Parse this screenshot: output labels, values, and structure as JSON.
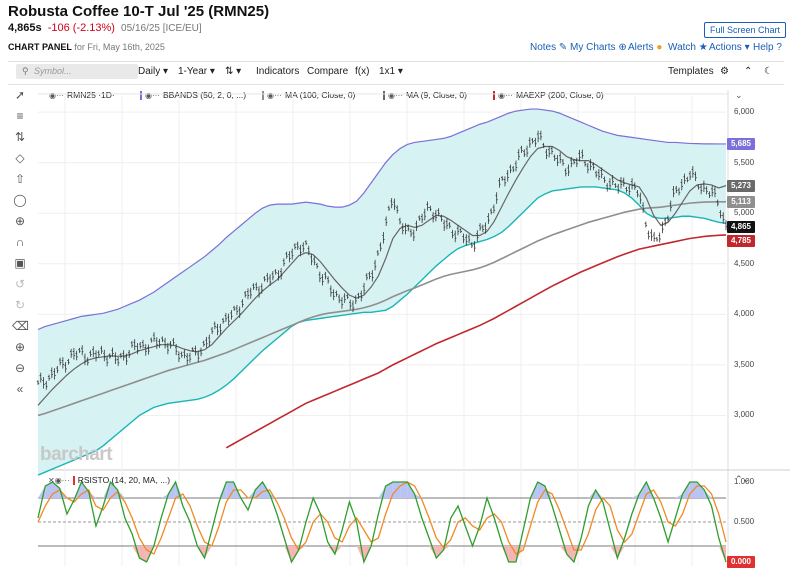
{
  "header": {
    "title": "Robusta Coffee 10-T Jul '25 (RMN25)",
    "last": "4,865s",
    "change": "-106 (-2.13%)",
    "date_exchange": "05/16/25 [ICE/EU]",
    "fullscreen_label": "Full Screen Chart",
    "panel_label": "CHART PANEL",
    "panel_sub": "for Fri, May 16th, 2025",
    "links": {
      "notes": "Notes",
      "mycharts": "My Charts",
      "alerts": "Alerts",
      "watch": "Watch",
      "actions": "Actions",
      "help": "Help"
    }
  },
  "toolbar": {
    "symbol_placeholder": "Symbol...",
    "period": "Daily",
    "range": "1-Year",
    "type_icon": "bar-type",
    "indicators": "Indicators",
    "compare": "Compare",
    "fx": "f(x)",
    "layout": "1x1",
    "templates": "Templates"
  },
  "legend": {
    "symbol": "RMN25 ·1D·",
    "bbands": "BBANDS (50, 2, 0, ...)",
    "ma100": "MA (100, Close, 0)",
    "ma9": "MA (9, Close, 0)",
    "maexp": "MAEXP (200, Close, 0)",
    "rsisto": "RSISTO (14, 20, MA, ...)"
  },
  "watermark": "barchart",
  "colors": {
    "price_bars": "#333333",
    "bb_upper": "#7a70d8",
    "bb_lower": "#1ab5b5",
    "bb_fill": "#d7f2f2",
    "ma100": "#8f8f8f",
    "ma9": "#666666",
    "maexp": "#c0282d",
    "rsi_fast": "#2e9e2e",
    "rsi_slow": "#f08a24",
    "rsi_over": "#3b5bdb",
    "rsi_under": "#e03131",
    "last_badge": "#111111"
  },
  "chart_data": [
    {
      "type": "line",
      "title": "Robusta Coffee 10-T Jul '25 (RMN25)",
      "y_axis_ticks": [
        "6,000",
        "5,500",
        "5,000",
        "4,500",
        "4,000",
        "3,500",
        "3,000"
      ],
      "ylim": [
        2500,
        6100
      ],
      "badges": [
        {
          "label": "5,685",
          "value": 5685,
          "series": "BB upper"
        },
        {
          "label": "5,273",
          "value": 5273,
          "series": "MA 9"
        },
        {
          "label": "5,113",
          "value": 5113,
          "series": "MA 100"
        },
        {
          "label": "4,865",
          "value": 4865,
          "series": "Last"
        },
        {
          "label": "4,785",
          "value": 4785,
          "series": "MAEXP 200"
        }
      ],
      "n_bars": 250,
      "series": [
        {
          "name": "Close",
          "values": [
            3300,
            3350,
            3400,
            3480,
            3550,
            3600,
            3620,
            3580,
            3600,
            3620,
            3580,
            3550,
            3600,
            3650,
            3700,
            3680,
            3720,
            3750,
            3700,
            3650,
            3600,
            3580,
            3620,
            3700,
            3800,
            3900,
            3950,
            4000,
            4100,
            4200,
            4250,
            4300,
            4350,
            4400,
            4500,
            4600,
            4700,
            4650,
            4550,
            4400,
            4300,
            4200,
            4150,
            4100,
            4150,
            4250,
            4400,
            4600,
            4850,
            5200,
            4900,
            4800,
            4850,
            4950,
            5050,
            5000,
            4900,
            4850,
            4800,
            4750,
            4700,
            4800,
            4900,
            5100,
            5300,
            5400,
            5500,
            5600,
            5700,
            5750,
            5650,
            5600,
            5500,
            5450,
            5500,
            5550,
            5500,
            5400,
            5350,
            5300,
            5250,
            5300,
            5250,
            5200,
            4900,
            4700,
            4800,
            5000,
            5200,
            5300,
            5400,
            5300,
            5250,
            5200,
            5100,
            4865
          ]
        },
        {
          "name": "MA 9",
          "values": [
            3100,
            3180,
            3260,
            3330,
            3400,
            3460,
            3510,
            3550,
            3570,
            3580,
            3590,
            3585,
            3590,
            3610,
            3640,
            3660,
            3680,
            3700,
            3700,
            3690,
            3660,
            3640,
            3630,
            3650,
            3700,
            3780,
            3860,
            3930,
            4000,
            4080,
            4160,
            4230,
            4290,
            4340,
            4420,
            4500,
            4580,
            4610,
            4590,
            4520,
            4430,
            4340,
            4260,
            4190,
            4160,
            4190,
            4270,
            4380,
            4550,
            4750,
            4850,
            4880,
            4860,
            4880,
            4930,
            4980,
            4970,
            4930,
            4880,
            4830,
            4780,
            4780,
            4820,
            4920,
            5060,
            5200,
            5330,
            5450,
            5560,
            5640,
            5660,
            5660,
            5620,
            5560,
            5530,
            5520,
            5520,
            5480,
            5430,
            5380,
            5330,
            5300,
            5280,
            5260,
            5150,
            4980,
            4880,
            4910,
            5000,
            5110,
            5220,
            5280,
            5290,
            5280,
            5250,
            5273
          ]
        },
        {
          "name": "MA 100",
          "values": [
            3000,
            3020,
            3045,
            3070,
            3095,
            3120,
            3145,
            3170,
            3195,
            3220,
            3245,
            3270,
            3295,
            3320,
            3345,
            3370,
            3395,
            3420,
            3445,
            3465,
            3485,
            3505,
            3525,
            3545,
            3570,
            3595,
            3620,
            3650,
            3680,
            3710,
            3740,
            3770,
            3800,
            3830,
            3860,
            3890,
            3920,
            3950,
            3975,
            3995,
            4010,
            4020,
            4030,
            4040,
            4050,
            4065,
            4085,
            4110,
            4140,
            4175,
            4205,
            4235,
            4260,
            4290,
            4320,
            4350,
            4375,
            4395,
            4410,
            4425,
            4440,
            4460,
            4485,
            4515,
            4550,
            4585,
            4620,
            4655,
            4690,
            4725,
            4755,
            4785,
            4810,
            4835,
            4860,
            4885,
            4910,
            4930,
            4950,
            4970,
            4990,
            5010,
            5025,
            5040,
            5050,
            5055,
            5060,
            5070,
            5080,
            5090,
            5100,
            5105,
            5110,
            5112,
            5113,
            5113
          ]
        },
        {
          "name": "MAEXP 200",
          "values": [
            null,
            null,
            null,
            null,
            null,
            null,
            null,
            null,
            null,
            null,
            null,
            null,
            null,
            null,
            null,
            null,
            null,
            null,
            null,
            null,
            null,
            null,
            null,
            null,
            null,
            null,
            2680,
            2720,
            2760,
            2800,
            2840,
            2880,
            2920,
            2960,
            3000,
            3040,
            3080,
            3120,
            3150,
            3180,
            3210,
            3240,
            3270,
            3300,
            3330,
            3360,
            3390,
            3420,
            3460,
            3500,
            3535,
            3570,
            3605,
            3640,
            3675,
            3710,
            3740,
            3770,
            3800,
            3830,
            3860,
            3890,
            3925,
            3960,
            4000,
            4040,
            4080,
            4120,
            4160,
            4200,
            4240,
            4280,
            4315,
            4350,
            4385,
            4420,
            4450,
            4480,
            4510,
            4540,
            4570,
            4595,
            4620,
            4645,
            4660,
            4675,
            4690,
            4705,
            4720,
            4735,
            4750,
            4760,
            4770,
            4777,
            4782,
            4785
          ]
        },
        {
          "name": "BB upper",
          "values": [
            3850,
            3880,
            3900,
            3920,
            3940,
            3960,
            3980,
            3990,
            4000,
            4010,
            4030,
            4050,
            4080,
            4110,
            4140,
            4180,
            4220,
            4270,
            4320,
            4370,
            4420,
            4470,
            4520,
            4570,
            4630,
            4690,
            4760,
            4820,
            4880,
            4940,
            5000,
            5050,
            5080,
            5090,
            5090,
            5090,
            5100,
            5110,
            5100,
            5090,
            5070,
            5060,
            5060,
            5080,
            5120,
            5200,
            5300,
            5400,
            5500,
            5580,
            5640,
            5680,
            5700,
            5710,
            5720,
            5730,
            5740,
            5760,
            5790,
            5820,
            5850,
            5880,
            5900,
            5930,
            5960,
            5990,
            6010,
            6020,
            6030,
            6030,
            6020,
            6010,
            5990,
            5960,
            5930,
            5900,
            5870,
            5840,
            5810,
            5790,
            5770,
            5760,
            5750,
            5740,
            5730,
            5720,
            5710,
            5700,
            5700,
            5695,
            5690,
            5688,
            5686,
            5686,
            5685,
            5685
          ]
        },
        {
          "name": "BB lower",
          "values": [
            2410,
            2440,
            2470,
            2500,
            2530,
            2560,
            2590,
            2620,
            2650,
            2700,
            2760,
            2820,
            2880,
            2940,
            3000,
            3040,
            3080,
            3100,
            3120,
            3130,
            3140,
            3150,
            3160,
            3180,
            3210,
            3250,
            3300,
            3360,
            3430,
            3500,
            3570,
            3640,
            3700,
            3760,
            3820,
            3880,
            3920,
            3940,
            3950,
            3960,
            3970,
            3980,
            3990,
            4000,
            4010,
            4020,
            4020,
            4030,
            4040,
            4080,
            4140,
            4200,
            4270,
            4340,
            4410,
            4480,
            4540,
            4600,
            4650,
            4680,
            4700,
            4720,
            4740,
            4770,
            4810,
            4870,
            4940,
            5010,
            5080,
            5150,
            5190,
            5220,
            5230,
            5240,
            5250,
            5260,
            5260,
            5260,
            5250,
            5240,
            5230,
            5200,
            5150,
            5080,
            5000,
            4960,
            4950,
            4950,
            4960,
            4970,
            4970,
            4960,
            4950,
            4930,
            4910,
            4900
          ]
        }
      ]
    },
    {
      "type": "line",
      "title": "RSISTO (14, 20, MA, ...)",
      "y_axis_ticks": [
        "1.000",
        "0.500",
        "0.000"
      ],
      "ylim": [
        -0.05,
        1.05
      ],
      "badges": [
        {
          "label": "0.000",
          "value": 0
        }
      ],
      "series": [
        {
          "name": "RSISTO fast",
          "values": [
            0.55,
            0.95,
            1.0,
            0.92,
            0.6,
            0.78,
            1.0,
            0.88,
            0.45,
            0.7,
            1.0,
            0.9,
            0.55,
            0.35,
            0.05,
            0.0,
            0.2,
            0.55,
            0.85,
            1.0,
            0.7,
            0.5,
            0.2,
            0.05,
            0.4,
            0.75,
            1.0,
            1.0,
            0.8,
            0.65,
            0.9,
            1.0,
            0.85,
            0.6,
            0.3,
            0.0,
            0.15,
            0.5,
            0.8,
            0.6,
            0.25,
            0.1,
            0.4,
            0.75,
            0.5,
            0.0,
            0.2,
            0.6,
            0.95,
            1.0,
            1.0,
            1.0,
            0.85,
            0.55,
            0.3,
            0.05,
            0.15,
            0.55,
            0.7,
            0.45,
            0.2,
            0.45,
            0.8,
            0.55,
            0.25,
            0.0,
            0.0,
            0.4,
            0.8,
            1.0,
            0.95,
            0.7,
            0.4,
            0.1,
            0.0,
            0.3,
            0.7,
            0.9,
            0.75,
            0.4,
            0.05,
            0.3,
            0.6,
            0.85,
            1.0,
            0.8,
            0.55,
            0.25,
            0.55,
            0.85,
            1.0,
            1.0,
            0.9,
            0.7,
            0.3,
            0.0
          ]
        },
        {
          "name": "RSISTO slow",
          "values": [
            0.5,
            0.7,
            0.85,
            0.9,
            0.8,
            0.75,
            0.85,
            0.9,
            0.7,
            0.65,
            0.8,
            0.88,
            0.75,
            0.55,
            0.3,
            0.15,
            0.1,
            0.3,
            0.55,
            0.8,
            0.85,
            0.7,
            0.45,
            0.25,
            0.2,
            0.45,
            0.75,
            0.9,
            0.9,
            0.8,
            0.8,
            0.88,
            0.9,
            0.75,
            0.55,
            0.3,
            0.15,
            0.25,
            0.5,
            0.6,
            0.5,
            0.3,
            0.25,
            0.45,
            0.55,
            0.4,
            0.25,
            0.3,
            0.6,
            0.85,
            0.95,
            1.0,
            0.95,
            0.78,
            0.55,
            0.3,
            0.18,
            0.28,
            0.5,
            0.55,
            0.45,
            0.4,
            0.55,
            0.6,
            0.5,
            0.25,
            0.1,
            0.15,
            0.45,
            0.75,
            0.9,
            0.85,
            0.65,
            0.4,
            0.15,
            0.15,
            0.35,
            0.65,
            0.8,
            0.7,
            0.4,
            0.25,
            0.35,
            0.6,
            0.85,
            0.9,
            0.75,
            0.5,
            0.45,
            0.6,
            0.85,
            0.95,
            0.95,
            0.85,
            0.6,
            0.25
          ]
        }
      ]
    }
  ]
}
